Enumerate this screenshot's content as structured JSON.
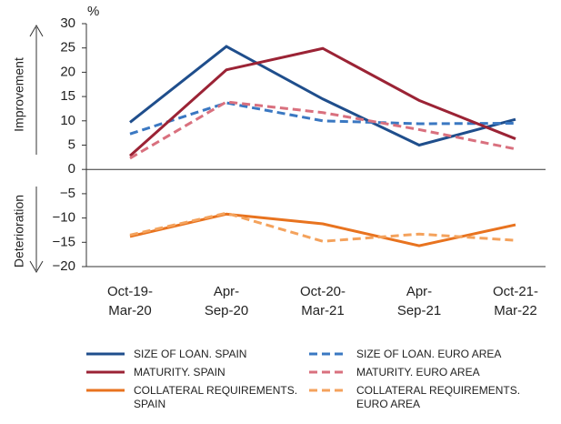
{
  "chart_data": {
    "type": "line",
    "unit_label": "%",
    "y_label_top": "Improvement",
    "y_label_bottom": "Deterioration",
    "categories": [
      [
        "Oct-19-",
        "Mar-20"
      ],
      [
        "Apr-",
        "Sep-20"
      ],
      [
        "Oct-20-",
        "Mar-21"
      ],
      [
        "Apr-",
        "Sep-21"
      ],
      [
        "Oct-21-",
        "Mar-22"
      ]
    ],
    "ylim": [
      -20,
      30
    ],
    "yticks": [
      {
        "value": -20,
        "label": "−20"
      },
      {
        "value": -15,
        "label": "−15"
      },
      {
        "value": -10,
        "label": "−10"
      },
      {
        "value": -5,
        "label": "−5"
      },
      0,
      5,
      10,
      15,
      20,
      25,
      30
    ],
    "grid": false,
    "series": [
      {
        "name": "SIZE OF LOAN. SPAIN",
        "color": "#1f4e8c",
        "dashed": false,
        "values": [
          9.7,
          25.3,
          14.5,
          5,
          10.3
        ]
      },
      {
        "name": "SIZE OF LOAN. EURO AREA",
        "color": "#3a78c2",
        "dashed": true,
        "values": [
          7.3,
          13.7,
          10,
          9.4,
          9.5
        ]
      },
      {
        "name": "MATURITY. SPAIN",
        "color": "#9b2335",
        "dashed": false,
        "values": [
          2.8,
          20.5,
          24.9,
          14.2,
          6.3
        ]
      },
      {
        "name": "MATURITY. EURO AREA",
        "color": "#d9707e",
        "dashed": true,
        "values": [
          2.3,
          13.9,
          11.7,
          8.2,
          4.2
        ]
      },
      {
        "name": "COLLATERAL REQUIREMENTS. SPAIN",
        "color": "#e8731f",
        "dashed": false,
        "values": [
          -13.8,
          -9.2,
          -11.2,
          -15.7,
          -11.4
        ]
      },
      {
        "name": "COLLATERAL REQUIREMENTS. EURO AREA",
        "color": "#f4a25c",
        "dashed": true,
        "values": [
          -13.5,
          -9,
          -14.8,
          -13.3,
          -14.6
        ]
      }
    ]
  }
}
